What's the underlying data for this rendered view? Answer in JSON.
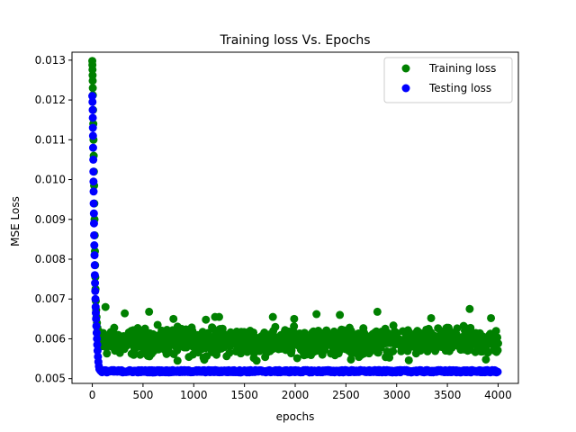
{
  "chart_data": {
    "type": "scatter",
    "title": "Training loss Vs. Epochs",
    "xlabel": "epochs",
    "ylabel": "MSE Loss",
    "xlim": [
      -200,
      4200
    ],
    "ylim": [
      0.00488,
      0.0132
    ],
    "x_ticks": [
      0,
      500,
      1000,
      1500,
      2000,
      2500,
      3000,
      3500,
      4000
    ],
    "x_tick_labels": [
      "0",
      "500",
      "1000",
      "1500",
      "2000",
      "2500",
      "3000",
      "3500",
      "4000"
    ],
    "y_ticks": [
      0.005,
      0.006,
      0.007,
      0.008,
      0.009,
      0.01,
      0.011,
      0.012,
      0.013
    ],
    "y_tick_labels": [
      "0.005",
      "0.006",
      "0.007",
      "0.008",
      "0.009",
      "0.010",
      "0.011",
      "0.012",
      "0.013"
    ],
    "grid": false,
    "legend_position": "top-right",
    "series": [
      {
        "name": "Training loss",
        "color": "#008000",
        "description_of_range": "epochs 0-4000",
        "points": [
          [
            0,
            0.01298
          ],
          [
            1,
            0.01288
          ],
          [
            2,
            0.01276
          ],
          [
            3,
            0.01262
          ],
          [
            4,
            0.01248
          ],
          [
            5,
            0.0123
          ],
          [
            6,
            0.01212
          ],
          [
            8,
            0.01175
          ],
          [
            10,
            0.0114
          ],
          [
            12,
            0.011
          ],
          [
            14,
            0.0106
          ],
          [
            16,
            0.0102
          ],
          [
            18,
            0.00985
          ],
          [
            20,
            0.0094
          ],
          [
            22,
            0.009
          ],
          [
            24,
            0.0086
          ],
          [
            26,
            0.0082
          ],
          [
            28,
            0.00785
          ],
          [
            30,
            0.00755
          ],
          [
            32,
            0.00725
          ],
          [
            35,
            0.00695
          ],
          [
            38,
            0.00672
          ],
          [
            42,
            0.00655
          ],
          [
            46,
            0.0064
          ],
          [
            50,
            0.00628
          ],
          [
            130,
            0.0068
          ],
          [
            320,
            0.00664
          ],
          [
            560,
            0.00668
          ],
          [
            800,
            0.0065
          ],
          [
            1120,
            0.00648
          ],
          [
            1210,
            0.00655
          ],
          [
            1250,
            0.00655
          ],
          [
            1780,
            0.00655
          ],
          [
            1990,
            0.0065
          ],
          [
            2210,
            0.00662
          ],
          [
            2440,
            0.0066
          ],
          [
            2810,
            0.00668
          ],
          [
            3340,
            0.00652
          ],
          [
            3720,
            0.00675
          ],
          [
            3930,
            0.00652
          ],
          [
            840,
            0.00545
          ],
          [
            1620,
            0.00545
          ],
          [
            2550,
            0.00548
          ],
          [
            3120,
            0.00546
          ],
          [
            3880,
            0.00548
          ]
        ],
        "noise_band": {
          "x_start": 60,
          "x_end": 4000,
          "y_min": 0.00545,
          "y_max": 0.0064,
          "mean": 0.00592
        }
      },
      {
        "name": "Testing loss",
        "color": "#0000ff",
        "points": [
          [
            0,
            0.0121
          ],
          [
            2,
            0.01195
          ],
          [
            4,
            0.01175
          ],
          [
            5,
            0.01155
          ],
          [
            6,
            0.0113
          ],
          [
            7,
            0.0111
          ],
          [
            8,
            0.0108
          ],
          [
            10,
            0.0105
          ],
          [
            11,
            0.0102
          ],
          [
            12,
            0.00995
          ],
          [
            13,
            0.0097
          ],
          [
            14,
            0.0094
          ],
          [
            16,
            0.00915
          ],
          [
            17,
            0.0089
          ],
          [
            18,
            0.0086
          ],
          [
            20,
            0.00835
          ],
          [
            22,
            0.0081
          ],
          [
            24,
            0.00785
          ],
          [
            25,
            0.0076
          ],
          [
            27,
            0.0074
          ],
          [
            29,
            0.0072
          ],
          [
            31,
            0.007
          ],
          [
            33,
            0.0068
          ],
          [
            35,
            0.00665
          ],
          [
            37,
            0.0065
          ],
          [
            40,
            0.00632
          ],
          [
            43,
            0.00615
          ],
          [
            46,
            0.006
          ],
          [
            49,
            0.00585
          ],
          [
            52,
            0.0057
          ],
          [
            56,
            0.00555
          ],
          [
            60,
            0.00542
          ],
          [
            65,
            0.00531
          ],
          [
            70,
            0.00524
          ],
          [
            80,
            0.0052
          ],
          [
            90,
            0.00518
          ]
        ],
        "flat_band": {
          "x_start": 90,
          "x_end": 4000,
          "y_min": 0.005155,
          "y_max": 0.005215
        }
      }
    ]
  }
}
